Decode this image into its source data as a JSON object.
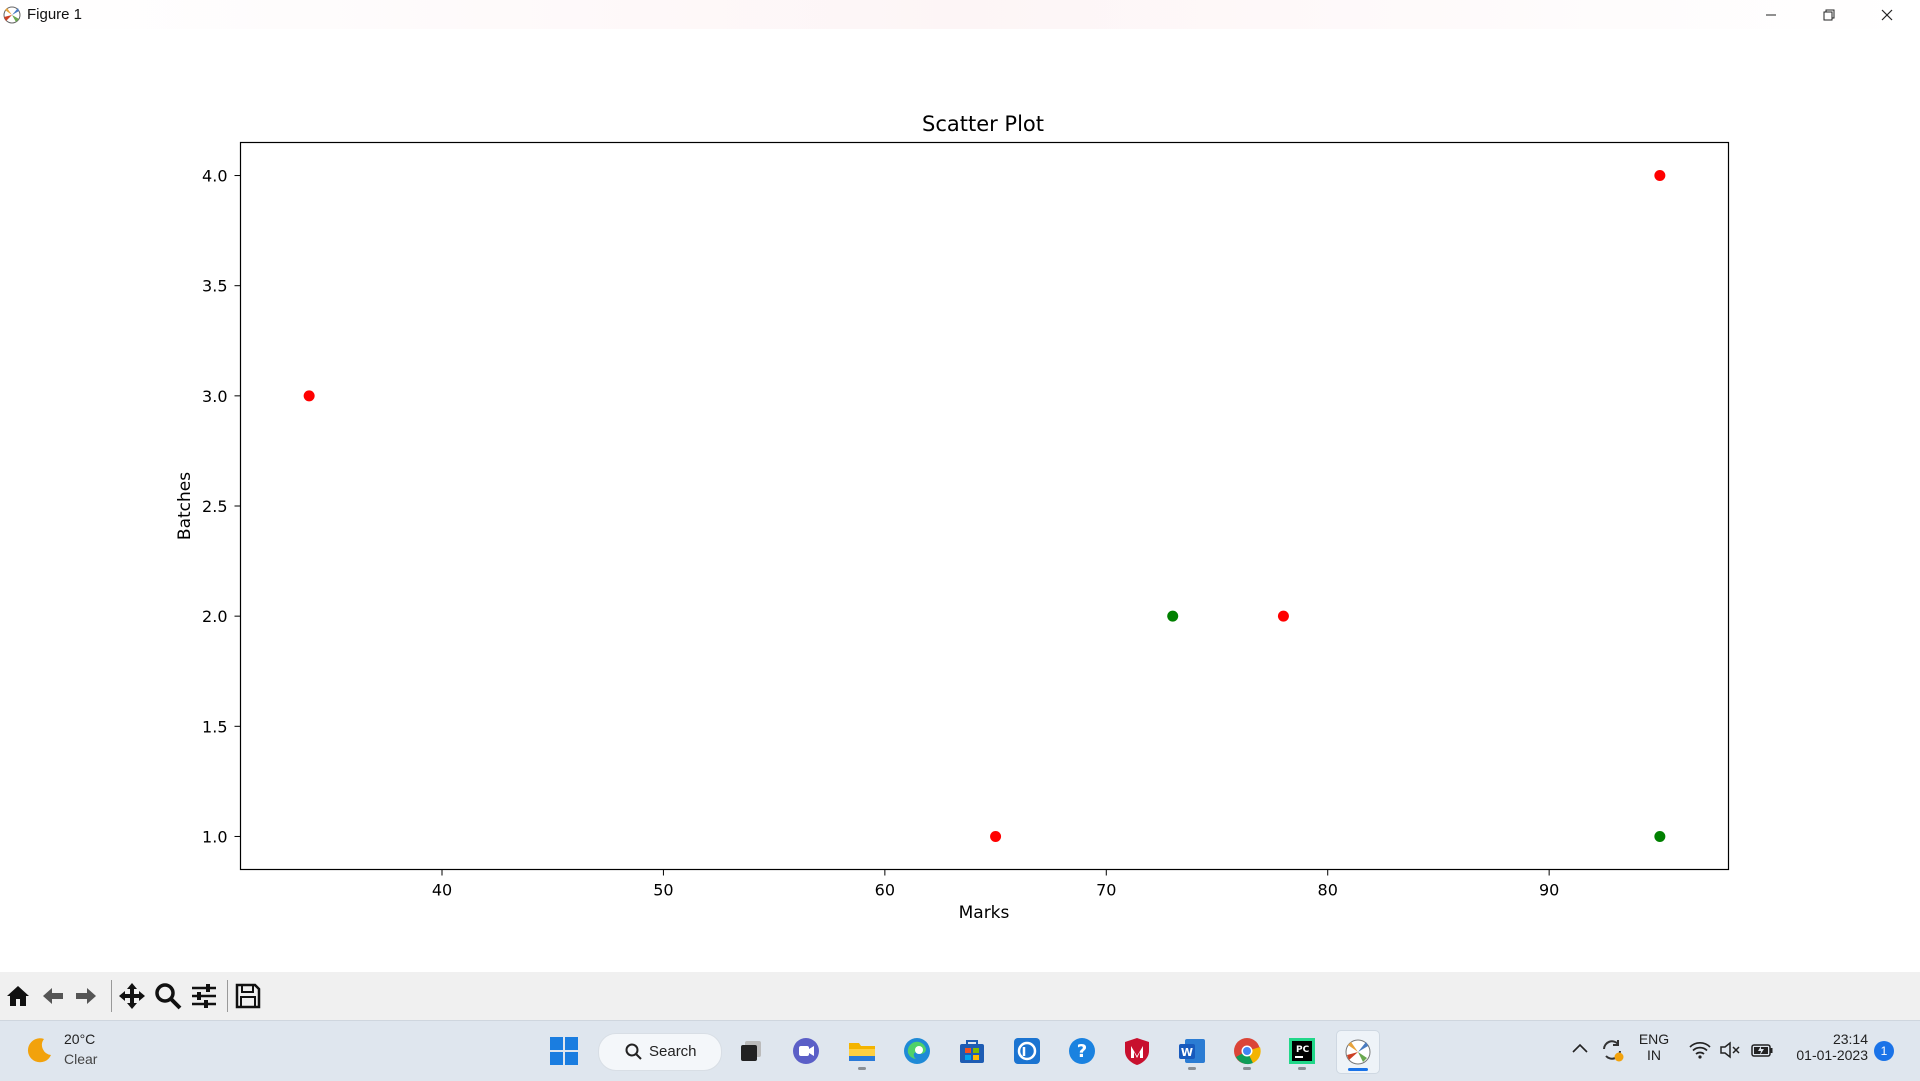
{
  "window": {
    "title": "Figure 1"
  },
  "chart_data": {
    "type": "scatter",
    "title": "Scatter Plot",
    "xlabel": "Marks",
    "ylabel": "Batches",
    "xlim": [
      30.9,
      98.1
    ],
    "ylim": [
      0.85,
      4.15
    ],
    "xticks": [
      40,
      50,
      60,
      70,
      80,
      90
    ],
    "xtick_labels": [
      "40",
      "50",
      "60",
      "70",
      "80",
      "90"
    ],
    "yticks": [
      1.0,
      1.5,
      2.0,
      2.5,
      3.0,
      3.5,
      4.0
    ],
    "ytick_labels": [
      "1.0",
      "1.5",
      "2.0",
      "2.5",
      "3.0",
      "3.5",
      "4.0"
    ],
    "grid": false,
    "series": [
      {
        "color": "#ff0000",
        "points": [
          [
            34,
            3
          ],
          [
            65,
            1
          ],
          [
            78,
            2
          ],
          [
            95,
            4
          ]
        ]
      },
      {
        "color": "#008000",
        "points": [
          [
            73,
            2
          ],
          [
            95,
            1
          ]
        ]
      }
    ]
  },
  "taskbar": {
    "weather": {
      "temp": "20°C",
      "condition": "Clear"
    },
    "search_label": "Search",
    "language": {
      "line1": "ENG",
      "line2": "IN"
    },
    "clock": {
      "time": "23:14",
      "date": "01-01-2023"
    },
    "notification_count": "1"
  }
}
